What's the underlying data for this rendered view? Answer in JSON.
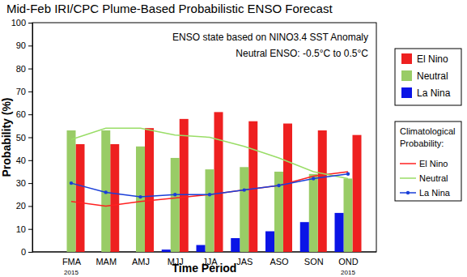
{
  "chart_data": {
    "type": "bar",
    "title": "Mid-Feb IRI/CPC Plume-Based Probabilistic ENSO Forecast",
    "x_label": "Time Period",
    "y_label": "Probability (%)",
    "categories": [
      "FMA",
      "MAM",
      "AMJ",
      "MJJ",
      "JJA",
      "JAS",
      "ASO",
      "SON",
      "OND"
    ],
    "category_years": [
      "2015",
      null,
      null,
      null,
      null,
      null,
      null,
      null,
      "2015"
    ],
    "annotations": [
      "ENSO state based on NINO3.4 SST Anomaly",
      "Neutral ENSO: -0.5°C to 0.5°C"
    ],
    "line_legend_title": [
      "Climatological",
      "Probability:"
    ],
    "ylim": [
      0,
      100
    ],
    "yticks": [
      0,
      10,
      20,
      30,
      40,
      50,
      60,
      70,
      80,
      90,
      100
    ],
    "grid": false,
    "legend": "right",
    "series": [
      {
        "name": "El Nino",
        "type": "bar",
        "color": "#ee2020",
        "values": [
          47,
          47,
          54,
          58,
          61,
          57,
          56,
          53,
          51
        ]
      },
      {
        "name": "Neutral",
        "type": "bar",
        "color": "#99cc66",
        "values": [
          53,
          53,
          46,
          41,
          36,
          37,
          35,
          34,
          32
        ]
      },
      {
        "name": "La Nina",
        "type": "bar",
        "color": "#0a14e6",
        "values": [
          0,
          0,
          0,
          1,
          3,
          6,
          9,
          13,
          17
        ]
      },
      {
        "name": "El Nino",
        "type": "line",
        "color": "#ff2020",
        "values": [
          22,
          20,
          22,
          23.5,
          25,
          27,
          29,
          33,
          35
        ]
      },
      {
        "name": "Neutral",
        "type": "line",
        "color": "#99dd66",
        "values": [
          49,
          54,
          54,
          51,
          50,
          46,
          41,
          35,
          32
        ]
      },
      {
        "name": "La Nina",
        "type": "line",
        "color": "#1a3fd9",
        "marker": "circle",
        "values": [
          30,
          26,
          24,
          25,
          25,
          27,
          29,
          32,
          34
        ]
      }
    ]
  }
}
